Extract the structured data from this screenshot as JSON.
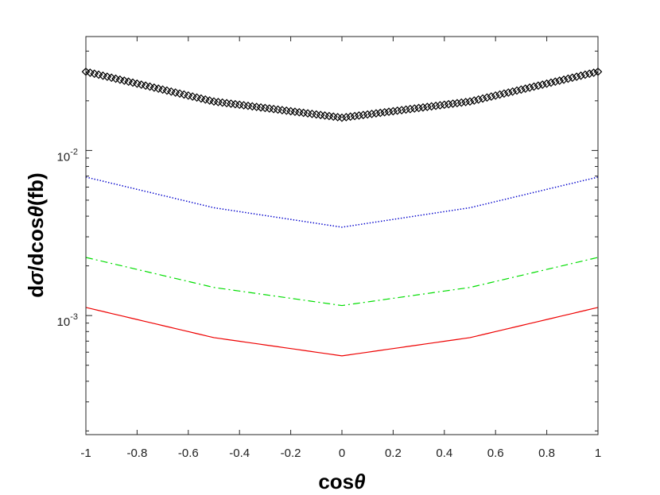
{
  "chart_data": {
    "type": "line",
    "title": "",
    "xlabel": {
      "text": "cos",
      "symbol": "θ"
    },
    "ylabel": {
      "prefix": "d",
      "sigma": "σ",
      "mid": "/dcos",
      "theta": "θ",
      "suffix": "(fb)"
    },
    "xlim": [
      -1,
      1
    ],
    "ylim": [
      0.00019,
      0.049
    ],
    "yscale": "log",
    "grid": false,
    "legend": "none",
    "x_ticks": [
      -1,
      -0.8,
      -0.6,
      -0.4,
      -0.2,
      0,
      0.2,
      0.4,
      0.6,
      0.8,
      1
    ],
    "x_tick_labels": [
      "-1",
      "-0.8",
      "-0.6",
      "-0.4",
      "-0.2",
      "0",
      "0.2",
      "0.4",
      "0.6",
      "0.8",
      "1"
    ],
    "y_major_ticks": [
      {
        "value": 0.01,
        "base": "10",
        "exp": "-2"
      },
      {
        "value": 0.001,
        "base": "10",
        "exp": "-3"
      }
    ],
    "y_minor_ticks": [
      0.0002,
      0.0003,
      0.0004,
      0.0005,
      0.0006,
      0.0007,
      0.0008,
      0.0009,
      0.002,
      0.003,
      0.004,
      0.005,
      0.006,
      0.007,
      0.008,
      0.009,
      0.02,
      0.03,
      0.04
    ],
    "series": [
      {
        "color": "#000000",
        "style": "diamond-markers",
        "x": [
          -1,
          -0.5,
          0,
          0.5,
          1
        ],
        "y": [
          0.03,
          0.0198,
          0.0158,
          0.0198,
          0.03
        ]
      },
      {
        "color": "#0000cc",
        "style": "dotted",
        "x": [
          -1,
          -0.5,
          0,
          0.5,
          1
        ],
        "y": [
          0.0069,
          0.0045,
          0.00343,
          0.0045,
          0.0069
        ]
      },
      {
        "color": "#00dd00",
        "style": "dash-dot",
        "x": [
          -1,
          -0.5,
          0,
          0.5,
          1
        ],
        "y": [
          0.00225,
          0.00148,
          0.00115,
          0.00148,
          0.00225
        ]
      },
      {
        "color": "#ee0000",
        "style": "solid",
        "x": [
          -1,
          -0.5,
          0,
          0.5,
          1
        ],
        "y": [
          0.00112,
          0.000735,
          0.00057,
          0.000735,
          0.00112
        ]
      }
    ]
  }
}
